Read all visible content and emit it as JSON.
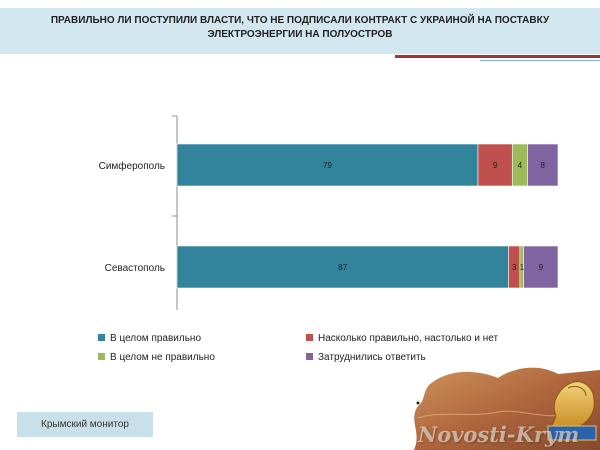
{
  "title": "ПРАВИЛЬНО ЛИ ПОСТУПИЛИ ВЛАСТИ, ЧТО НЕ ПОДПИСАЛИ КОНТРАКТ С УКРАИНОЙ НА ПОСТАВКУ ЭЛЕКТРОЭНЕРГИИ НА ПОЛУОСТРОВ",
  "footer": {
    "label": "Крымский монитор",
    "watermark": "Novosti-Krym"
  },
  "colors": {
    "title_band": "#d3e7f0",
    "accent_red": "#a33434",
    "accent_blue": "#7cb2cc"
  },
  "chart_data": {
    "type": "bar",
    "orientation": "horizontal",
    "stacked": true,
    "categories": [
      "Симферополь",
      "Севастополь"
    ],
    "series": [
      {
        "name": "В целом правильно",
        "color": "#31849b",
        "values": [
          79,
          87
        ]
      },
      {
        "name": "Насколько правильно, настолько и нет",
        "color": "#c0504d",
        "values": [
          9,
          3
        ]
      },
      {
        "name": "В целом не правильно",
        "color": "#9bbb59",
        "values": [
          4,
          1
        ]
      },
      {
        "name": "Затруднились ответить",
        "color": "#8064a2",
        "values": [
          8,
          9
        ]
      }
    ],
    "xlim": [
      0,
      100
    ],
    "grid": false,
    "legend_position": "bottom"
  }
}
